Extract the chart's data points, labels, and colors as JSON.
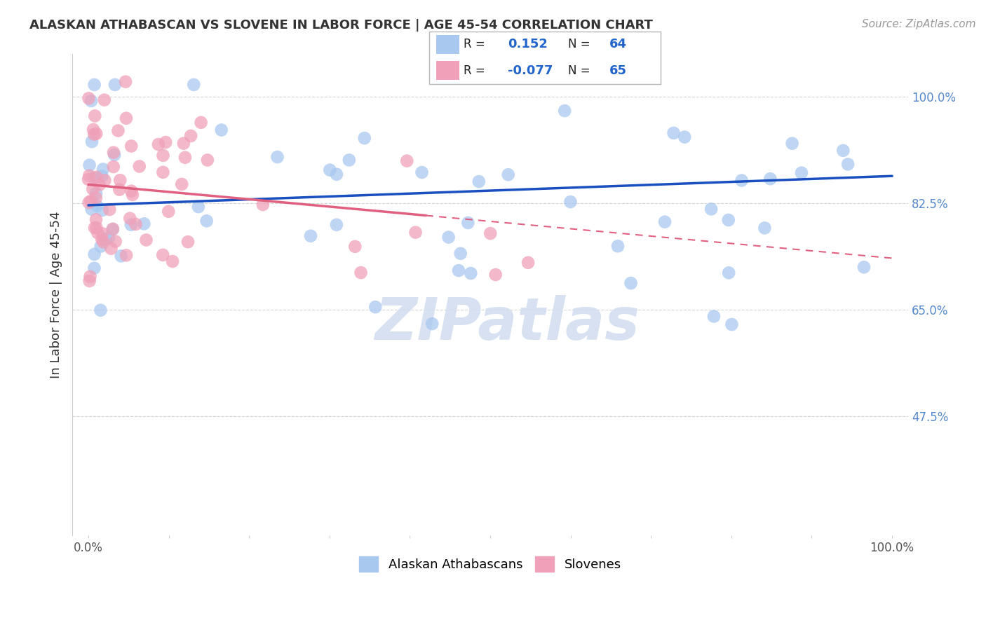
{
  "title": "ALASKAN ATHABASCAN VS SLOVENE IN LABOR FORCE | AGE 45-54 CORRELATION CHART",
  "source": "Source: ZipAtlas.com",
  "ylabel": "In Labor Force | Age 45-54",
  "y_tick_labels": [
    "100.0%",
    "82.5%",
    "65.0%",
    "47.5%"
  ],
  "y_tick_values": [
    1.0,
    0.825,
    0.65,
    0.475
  ],
  "xlim": [
    -0.02,
    1.02
  ],
  "ylim": [
    0.28,
    1.07
  ],
  "R_blue": 0.152,
  "N_blue": 64,
  "R_pink": -0.077,
  "N_pink": 65,
  "blue_color": "#A8C8F0",
  "pink_color": "#F0A0B8",
  "blue_line_color": "#1A4FC0",
  "pink_line_color": "#E06080",
  "background_color": "#FFFFFF",
  "grid_color": "#CCCCCC",
  "watermark_color": "#D0DCF0",
  "blue_line_start_y": 0.822,
  "blue_line_end_y": 0.87,
  "pink_line_start_y": 0.856,
  "pink_line_end_y": 0.735
}
